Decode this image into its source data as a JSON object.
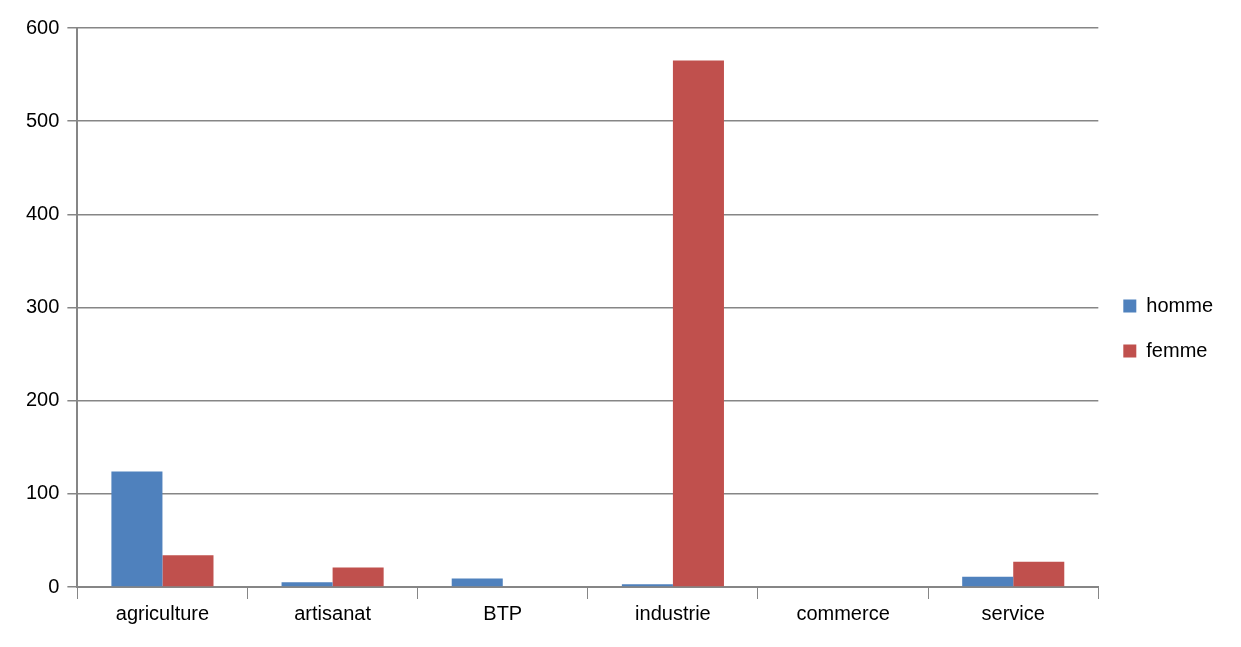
{
  "chart_data": {
    "type": "bar",
    "categories": [
      "agriculture",
      "artisanat",
      "BTP",
      "industrie",
      "commerce",
      "service"
    ],
    "series": [
      {
        "name": "homme",
        "color": "#4f81bd",
        "values": [
          124,
          5,
          9,
          3,
          0,
          11
        ]
      },
      {
        "name": "femme",
        "color": "#c0504d",
        "values": [
          34,
          21,
          0,
          565,
          0,
          27
        ]
      }
    ],
    "ylim": [
      0,
      600
    ],
    "yticks": [
      0,
      100,
      200,
      300,
      400,
      500,
      600
    ],
    "grid": "y",
    "legend": "right"
  }
}
